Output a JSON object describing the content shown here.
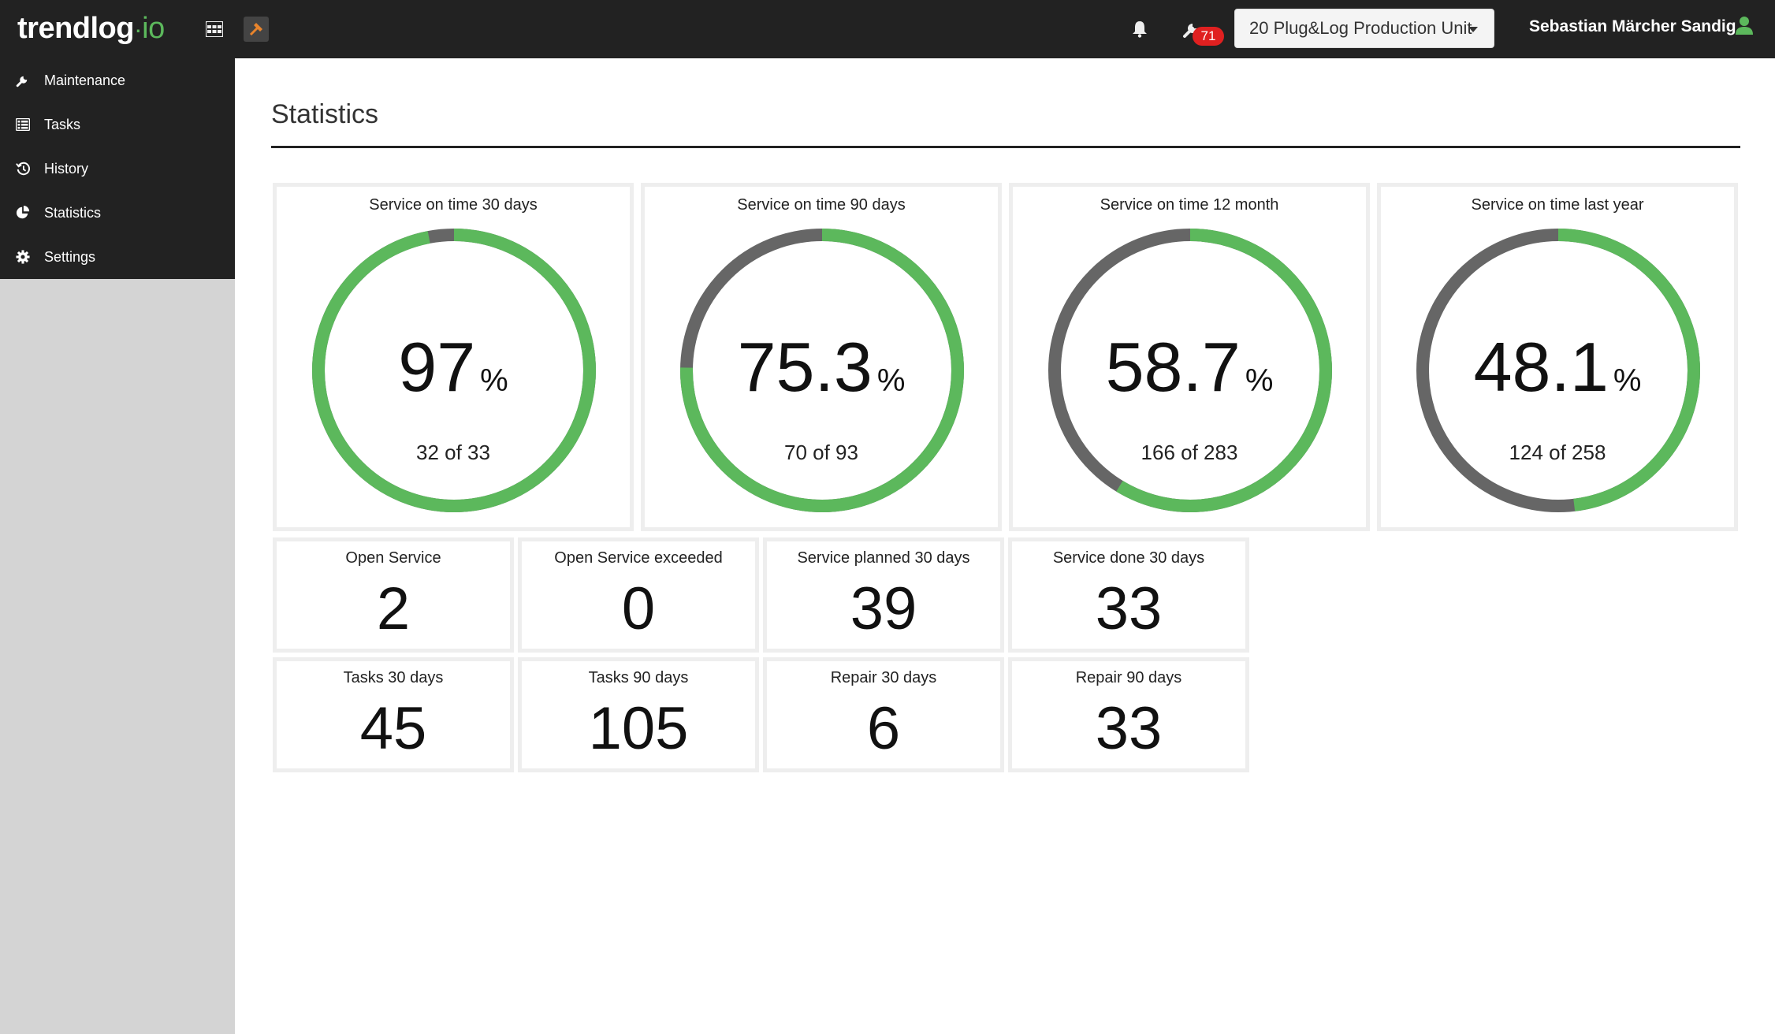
{
  "app": {
    "logo_main": "trendlog",
    "logo_dot": "·",
    "logo_suffix": "io"
  },
  "topbar": {
    "notification_count": "71",
    "unit_selector": "20 Plug&Log Production Unit",
    "user_name": "Sebastian Märcher Sandig"
  },
  "sidebar": {
    "items": [
      {
        "label": "Maintenance",
        "icon": "wrench-icon"
      },
      {
        "label": "Tasks",
        "icon": "list-icon"
      },
      {
        "label": "History",
        "icon": "history-icon"
      },
      {
        "label": "Statistics",
        "icon": "pie-chart-icon"
      },
      {
        "label": "Settings",
        "icon": "gear-icon"
      }
    ]
  },
  "main": {
    "title": "Statistics",
    "gauges": [
      {
        "title": "Service on time 30 days",
        "value": "97",
        "unit": "%",
        "sub": "32 of 33",
        "fraction": 0.97
      },
      {
        "title": "Service on time 90 days",
        "value": "75.3",
        "unit": "%",
        "sub": "70 of 93",
        "fraction": 0.753
      },
      {
        "title": "Service on time 12 month",
        "value": "58.7",
        "unit": "%",
        "sub": "166 of 283",
        "fraction": 0.587
      },
      {
        "title": "Service on time last year",
        "value": "48.1",
        "unit": "%",
        "sub": "124 of 258",
        "fraction": 0.481
      }
    ],
    "stats": [
      {
        "label": "Open Service",
        "value": "2"
      },
      {
        "label": "Open Service exceeded",
        "value": "0"
      },
      {
        "label": "Service planned 30 days",
        "value": "39"
      },
      {
        "label": "Service done 30 days",
        "value": "33"
      },
      {
        "label": "Tasks 30 days",
        "value": "45"
      },
      {
        "label": "Tasks 90 days",
        "value": "105"
      },
      {
        "label": "Repair 30 days",
        "value": "6"
      },
      {
        "label": "Repair 90 days",
        "value": "33"
      }
    ]
  },
  "colors": {
    "green": "#5cb85c",
    "gray": "#666666",
    "topbar": "#222222",
    "badge": "#e02020"
  }
}
